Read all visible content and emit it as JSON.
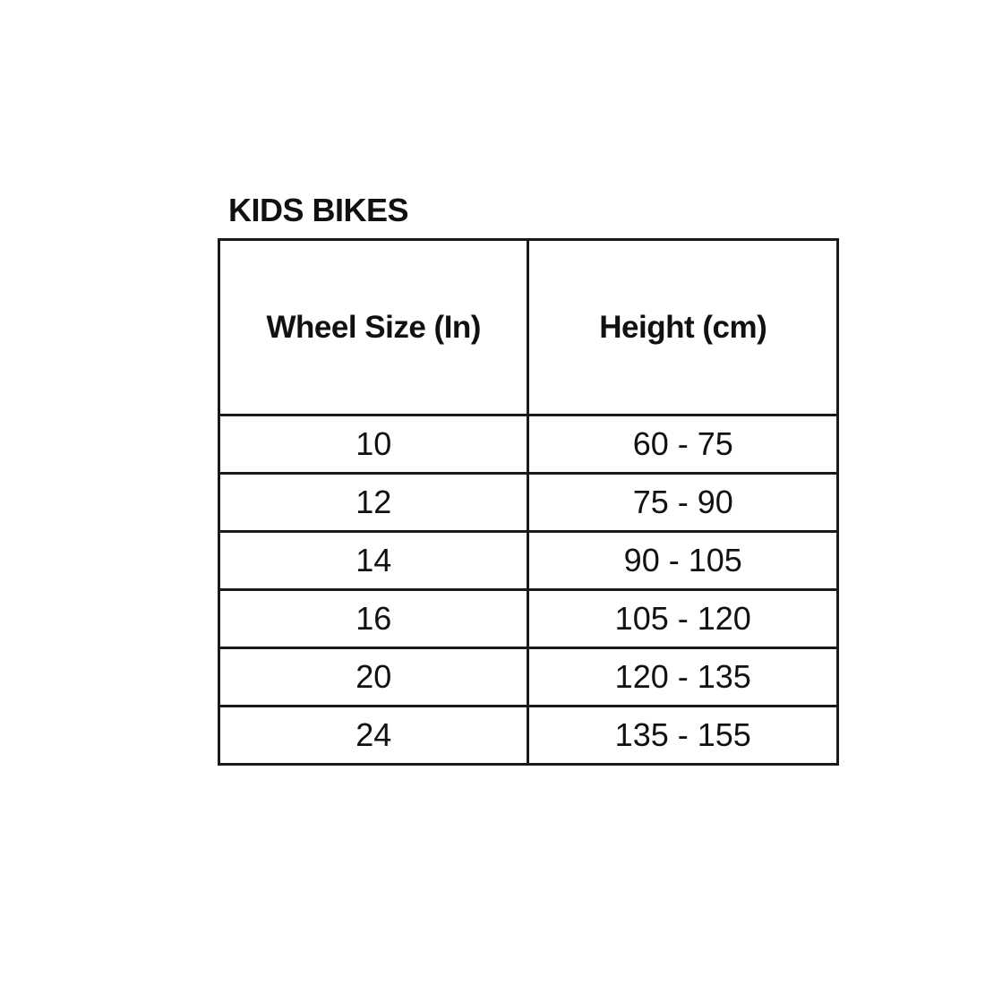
{
  "title": "KIDS BIKES",
  "table": {
    "headers": [
      "Wheel Size (In)",
      "Height (cm)"
    ],
    "rows": [
      [
        "10",
        "60 - 75"
      ],
      [
        "12",
        "75 - 90"
      ],
      [
        "14",
        "90 - 105"
      ],
      [
        "16",
        "105 - 120"
      ],
      [
        "20",
        "120 - 135"
      ],
      [
        "24",
        "135 - 155"
      ]
    ]
  }
}
